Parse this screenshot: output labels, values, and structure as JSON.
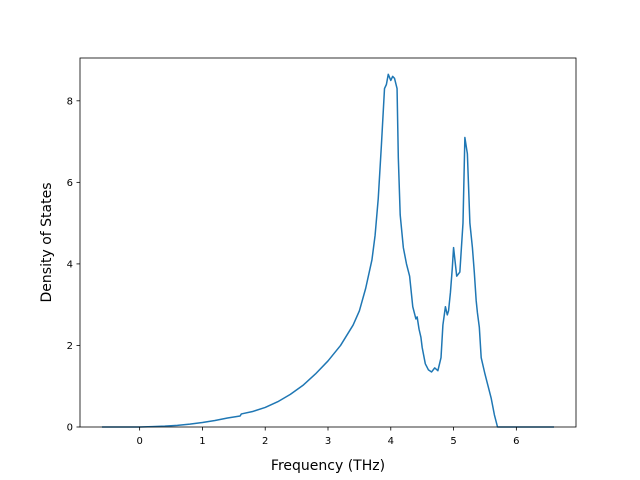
{
  "chart_data": {
    "type": "line",
    "xlabel": "Frequency (THz)",
    "ylabel": "Density of States",
    "xlim": [
      -0.95,
      6.95
    ],
    "ylim": [
      0,
      9.05
    ],
    "xticks": [
      0,
      1,
      2,
      3,
      4,
      5,
      6
    ],
    "yticks": [
      0,
      2,
      4,
      6,
      8
    ],
    "grid": false,
    "line_color": "#1f77b4",
    "series": [
      {
        "x": [
          -0.6,
          -0.4,
          -0.2,
          0.0,
          0.2,
          0.4,
          0.6,
          0.8,
          1.0,
          1.2,
          1.4,
          1.6,
          1.62,
          1.8,
          2.0,
          2.2,
          2.4,
          2.6,
          2.8,
          3.0,
          3.2,
          3.4,
          3.5,
          3.6,
          3.7,
          3.75,
          3.8,
          3.85,
          3.9,
          3.93,
          3.96,
          4.0,
          4.03,
          4.06,
          4.1,
          4.12,
          4.15,
          4.2,
          4.25,
          4.3,
          4.35,
          4.4,
          4.42,
          4.45,
          4.48,
          4.5,
          4.55,
          4.6,
          4.65,
          4.7,
          4.75,
          4.8,
          4.83,
          4.87,
          4.9,
          4.92,
          4.95,
          4.98,
          5.0,
          5.05,
          5.1,
          5.15,
          5.18,
          5.22,
          5.26,
          5.3,
          5.33,
          5.36,
          5.38,
          5.41,
          5.44,
          5.5,
          5.55,
          5.6,
          5.65,
          5.7,
          5.75,
          5.8,
          5.85,
          5.9,
          5.95,
          6.0,
          6.2,
          6.4,
          6.6
        ],
        "y": [
          0.0,
          0.0,
          0.0,
          0.0,
          0.01,
          0.02,
          0.04,
          0.07,
          0.11,
          0.16,
          0.22,
          0.27,
          0.32,
          0.38,
          0.48,
          0.62,
          0.8,
          1.02,
          1.3,
          1.62,
          2.0,
          2.5,
          2.85,
          3.4,
          4.1,
          4.7,
          5.6,
          6.9,
          8.3,
          8.4,
          8.65,
          8.5,
          8.6,
          8.55,
          8.3,
          6.6,
          5.2,
          4.4,
          4.0,
          3.7,
          2.95,
          2.65,
          2.7,
          2.4,
          2.2,
          1.95,
          1.55,
          1.4,
          1.35,
          1.45,
          1.38,
          1.7,
          2.5,
          2.95,
          2.75,
          2.85,
          3.3,
          3.9,
          4.4,
          3.7,
          3.8,
          5.0,
          7.1,
          6.7,
          5.0,
          4.4,
          3.8,
          3.1,
          2.8,
          2.45,
          1.7,
          1.3,
          1.0,
          0.7,
          0.3,
          0.0,
          0.0,
          0.0,
          0.0,
          0.0,
          0.0,
          0.0,
          0.0,
          0.0,
          0.0
        ]
      }
    ]
  }
}
